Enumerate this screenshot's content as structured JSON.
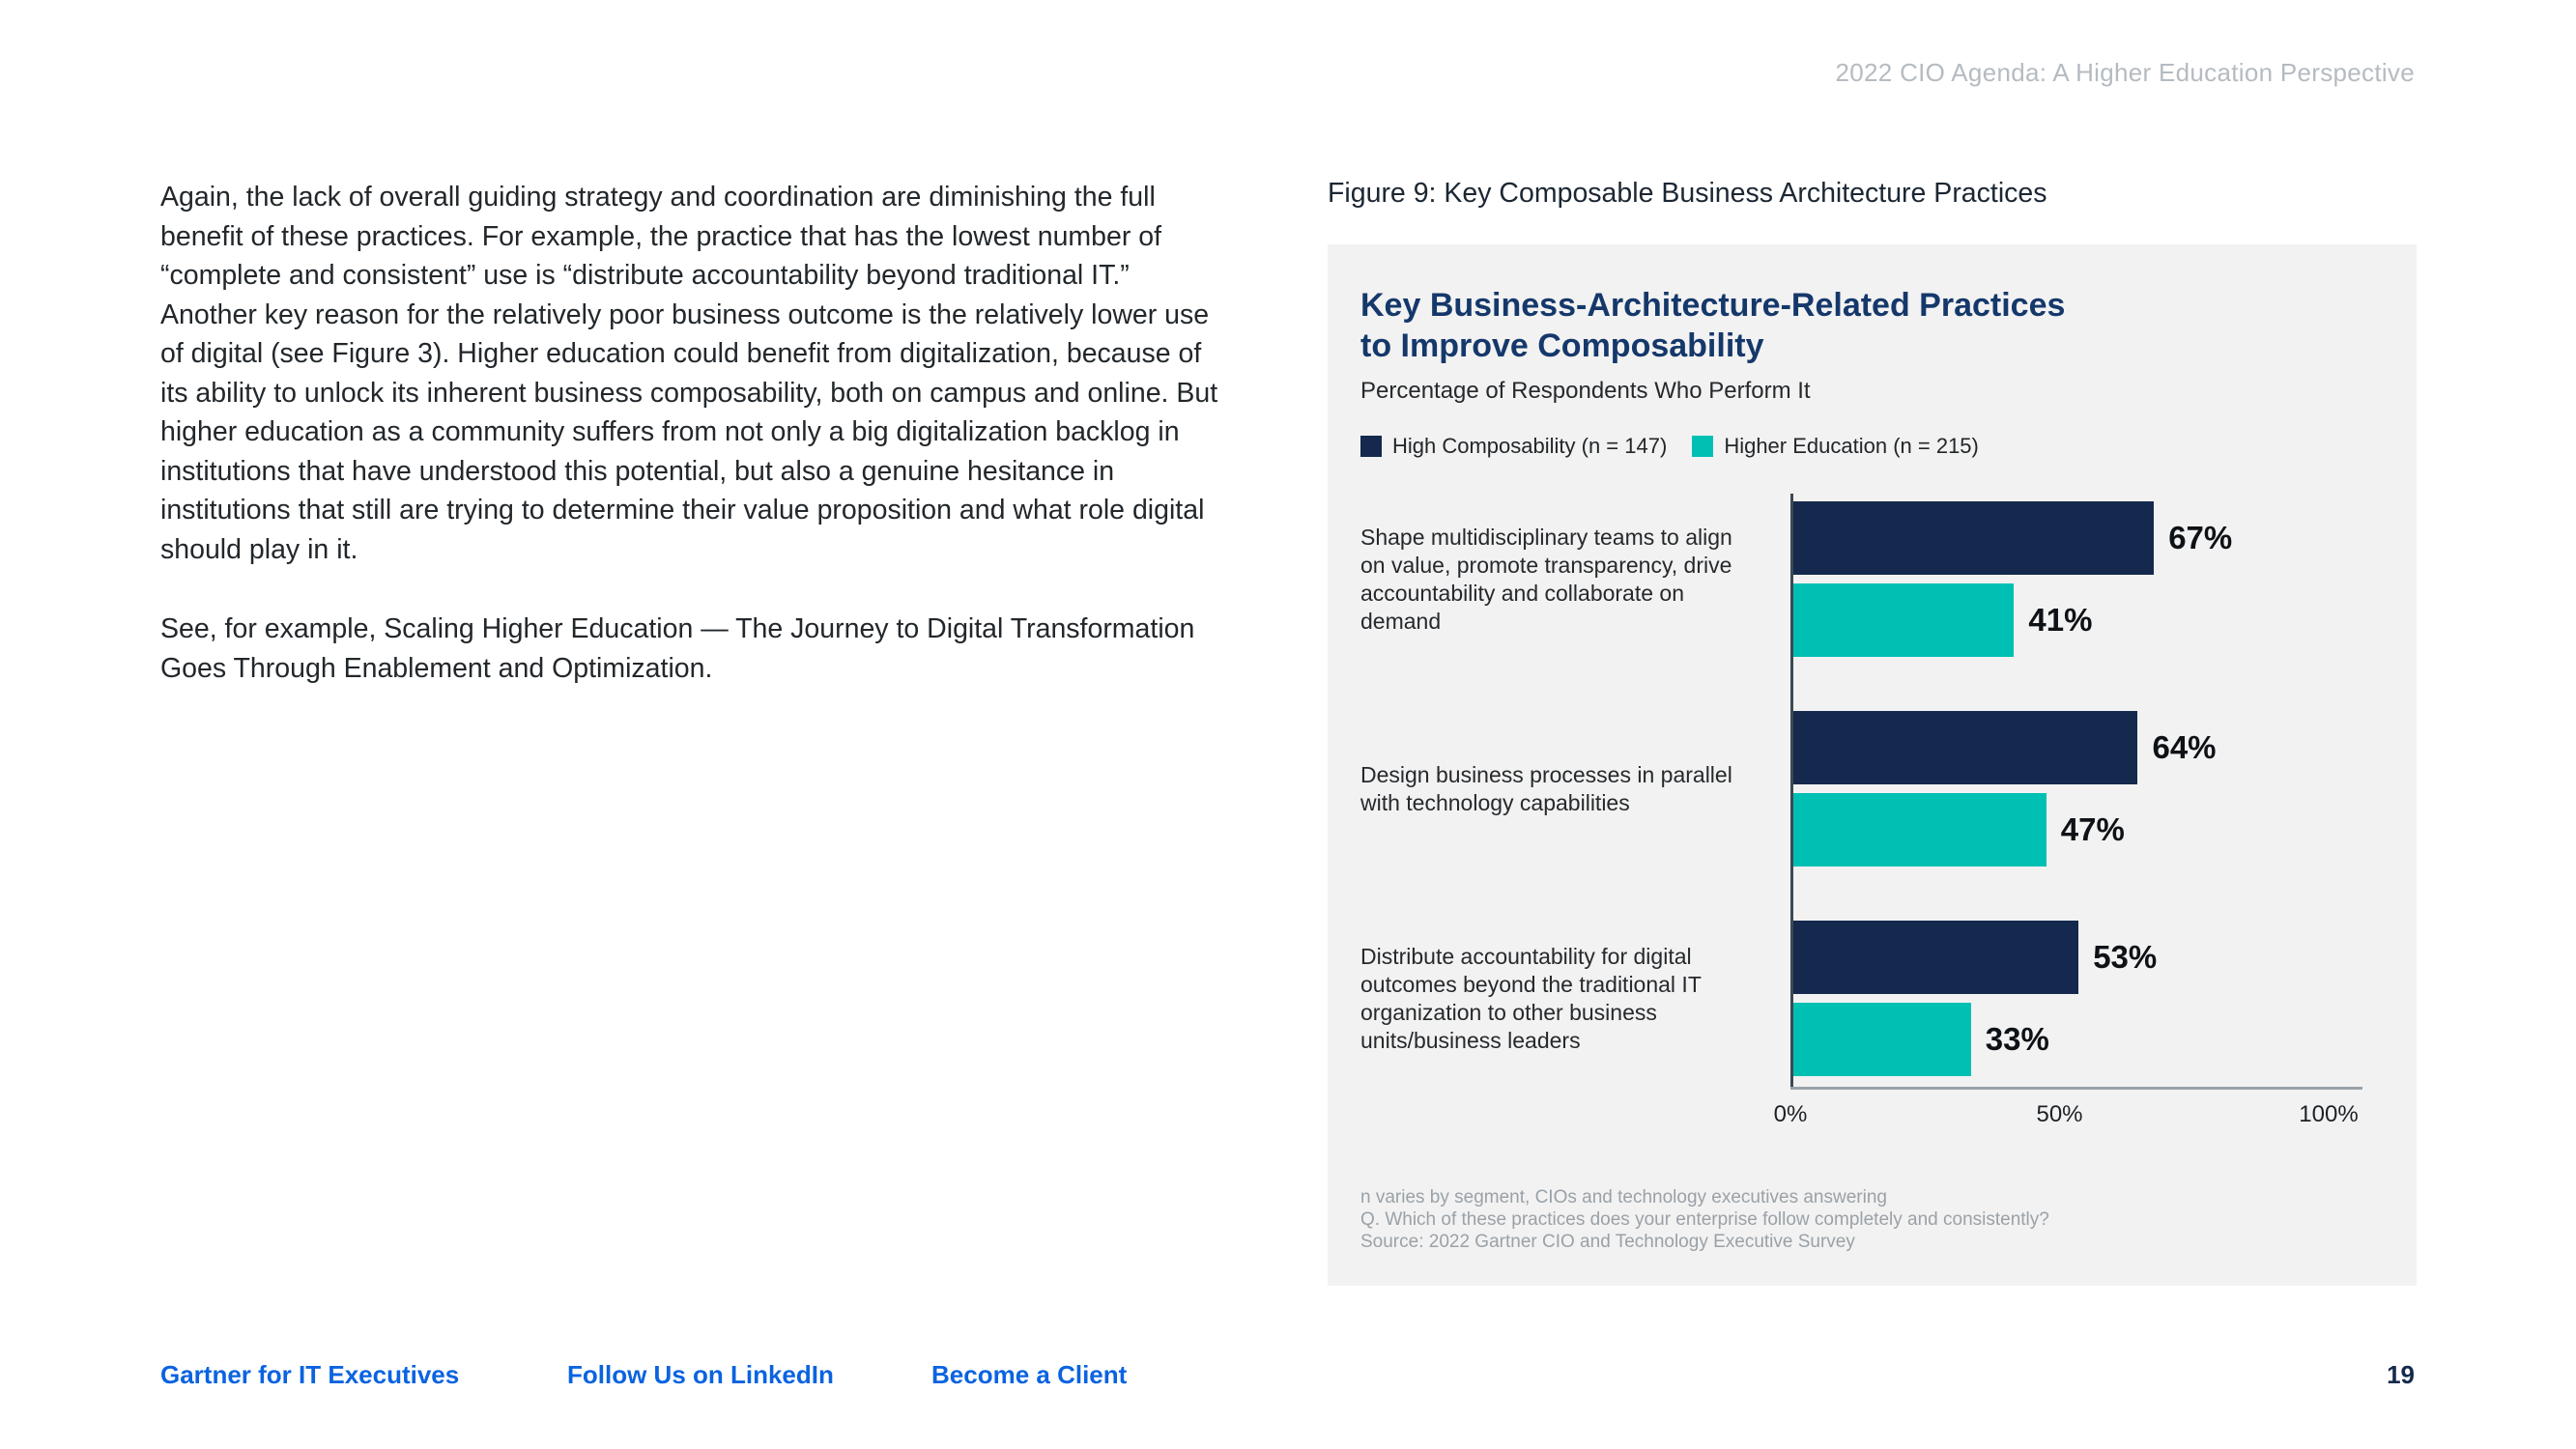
{
  "page": {
    "header_title": "2022 CIO Agenda: A Higher Education Perspective",
    "page_number": "19"
  },
  "body": {
    "paragraph1": "Again, the lack of overall guiding strategy and coordination are diminishing the full benefit of these practices. For example, the practice that has the lowest number of “complete and consistent” use is “distribute accountability beyond traditional IT.” Another key reason for the relatively poor business outcome is the relatively lower use of digital (see Figure 3). Higher education could benefit from digitalization, because of its ability to unlock its inherent business composability, both on campus and online. But higher education as a community suffers from not only a big digitalization backlog in institutions that have understood this potential, but also a genuine hesitance in institutions that still are trying to determine their value proposition and what role digital should play in it.",
    "paragraph2": "See, for example, Scaling Higher Education — The Journey to Digital Transformation Goes Through Enablement and Optimization."
  },
  "figure": {
    "caption": "Figure 9: Key Composable Business Architecture Practices",
    "title_line1": "Key Business-Architecture-Related Practices",
    "title_line2": "to Improve Composability",
    "subtitle": "Percentage of Respondents Who Perform It",
    "footnotes": [
      "n varies by segment, CIOs and technology executives answering",
      "Q. Which of these practices does your enterprise follow completely and consistently?",
      "Source: 2022 Gartner CIO and Technology Executive Survey"
    ]
  },
  "chart_data": {
    "type": "bar",
    "orientation": "horizontal",
    "title": "Key Business-Architecture-Related Practices to Improve Composability",
    "subtitle": "Percentage of Respondents Who Perform It",
    "categories": [
      "Shape multidisciplinary teams to align on value, promote transparency, drive accountability and collaborate on demand",
      "Design business processes in parallel with technology capabilities",
      "Distribute accountability for digital outcomes beyond the traditional IT organization to other business units/business leaders"
    ],
    "series": [
      {
        "name": "High Composability (n = 147)",
        "color": "#14294d",
        "values": [
          67,
          64,
          53
        ]
      },
      {
        "name": "Higher Education (n = 215)",
        "color": "#00c0b3",
        "values": [
          41,
          47,
          33
        ]
      }
    ],
    "value_suffix": "%",
    "xlim": [
      0,
      100
    ],
    "xticks": [
      "0%",
      "50%",
      "100%"
    ],
    "legend_position": "top",
    "grid": false
  },
  "footer": {
    "links": [
      "Gartner for IT Executives",
      "Follow Us on LinkedIn",
      "Become a Client"
    ]
  },
  "colors": {
    "accent_navy": "#14294d",
    "accent_teal": "#00c0b3",
    "link_blue": "#0b63e0",
    "panel_bg": "#f2f2f2",
    "header_gray": "#b5bbc1"
  }
}
